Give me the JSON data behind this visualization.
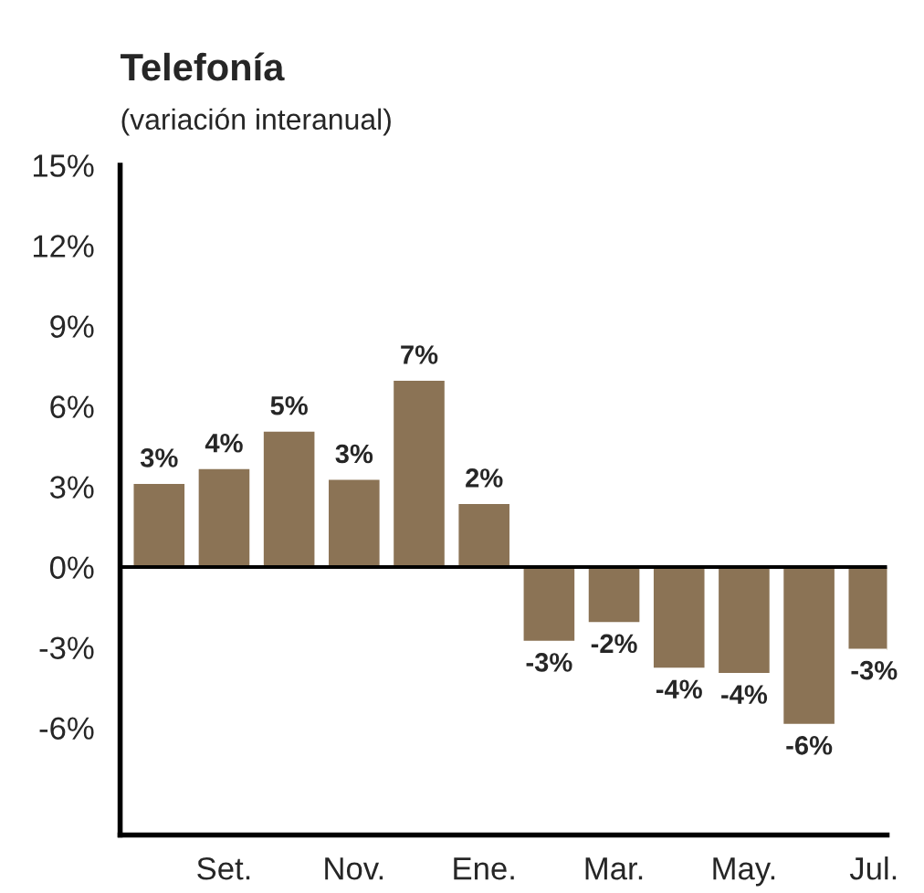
{
  "chart_data": {
    "type": "bar",
    "title": "Telefonía",
    "subtitle": "(variación interanual)",
    "categories": [
      null,
      "Set.",
      null,
      "Nov.",
      null,
      "Ene.",
      null,
      "Mar.",
      null,
      "May.",
      null,
      "Jul."
    ],
    "values": [
      3.15,
      3.7,
      5.1,
      3.3,
      7.0,
      2.4,
      -2.8,
      -2.1,
      -3.8,
      -4.0,
      -5.9,
      -3.1
    ],
    "value_labels": [
      "3%",
      "4%",
      "5%",
      "3%",
      "7%",
      "2%",
      "-3%",
      "-2%",
      "-4%",
      "-4%",
      "-6%",
      "-3%"
    ],
    "color": "#8b7355",
    "ylim": [
      -10,
      15
    ],
    "yticks": [
      {
        "value": 15,
        "label": "15%"
      },
      {
        "value": 12,
        "label": "12%"
      },
      {
        "value": 9,
        "label": "9%"
      },
      {
        "value": 6,
        "label": "6%"
      },
      {
        "value": 3,
        "label": "3%"
      },
      {
        "value": 0,
        "label": "0%"
      },
      {
        "value": -3,
        "label": "-3%"
      },
      {
        "value": -6,
        "label": "-6%"
      }
    ],
    "ref_lines": [
      {
        "axis": "y",
        "value": 0,
        "color": "#000000"
      }
    ],
    "grid": false,
    "legend": false
  }
}
